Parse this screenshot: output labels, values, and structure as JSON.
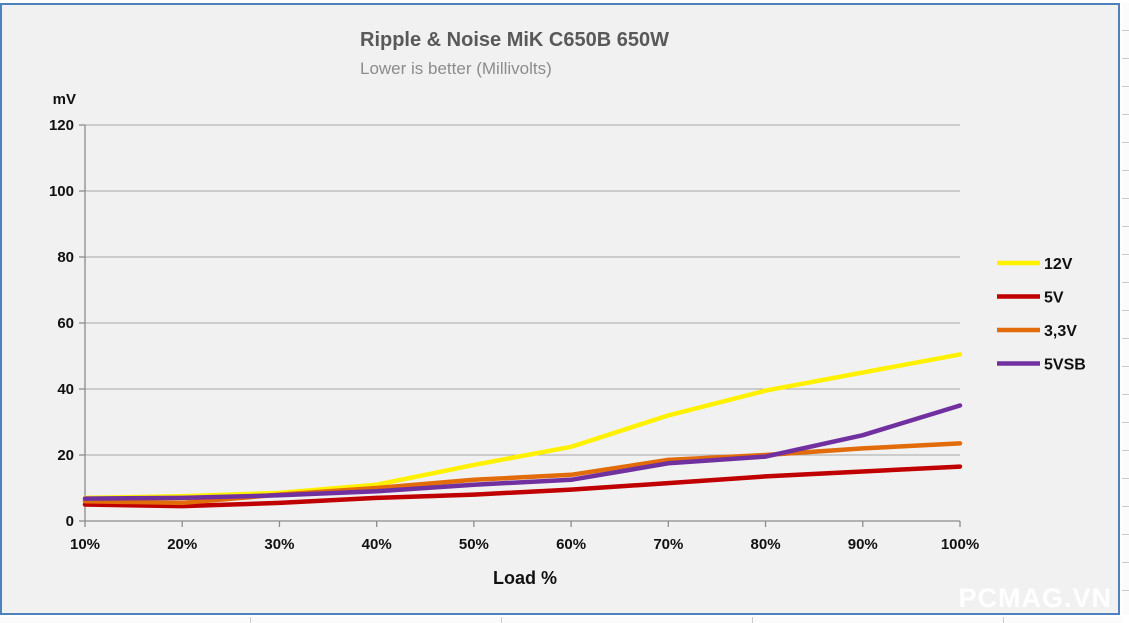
{
  "frame": {
    "background": "#f1f1f1",
    "border_color": "#4f81bd"
  },
  "header": {
    "title": "Ripple & Noise MiK C650B 650W",
    "subtitle": "Lower is better (Millivolts)"
  },
  "watermark": "PCMAG.VN",
  "chart_data": {
    "type": "line",
    "title": "Ripple & Noise MiK C650B 650W",
    "subtitle": "Lower is better (Millivolts)",
    "xlabel": "Load %",
    "ylabel": "mV",
    "categories": [
      "10%",
      "20%",
      "30%",
      "40%",
      "50%",
      "60%",
      "70%",
      "80%",
      "90%",
      "100%"
    ],
    "ylim": [
      0,
      120
    ],
    "ytick_step": 20,
    "yticks": [
      0,
      20,
      40,
      60,
      80,
      100,
      120
    ],
    "grid": "horizontal-only",
    "legend_position": "right",
    "axis_color": "#8c8c8c",
    "grid_color": "#a6a6a6",
    "series": [
      {
        "name": "12V",
        "color": "#FFF100",
        "values": [
          7.0,
          7.5,
          8.5,
          11.0,
          17.0,
          22.5,
          32.0,
          39.5,
          45.0,
          50.5
        ]
      },
      {
        "name": "5V",
        "color": "#C00000",
        "values": [
          5.0,
          4.5,
          5.5,
          7.0,
          8.0,
          9.5,
          11.5,
          13.5,
          15.0,
          16.5
        ]
      },
      {
        "name": "3,3V",
        "color": "#E26B0A",
        "values": [
          6.0,
          5.5,
          8.0,
          10.0,
          12.5,
          14.0,
          18.5,
          20.0,
          22.0,
          23.5
        ]
      },
      {
        "name": "5VSB",
        "color": "#7030A0",
        "values": [
          6.8,
          7.0,
          7.8,
          9.0,
          11.0,
          12.5,
          17.5,
          19.5,
          26.0,
          35.0
        ]
      }
    ]
  }
}
